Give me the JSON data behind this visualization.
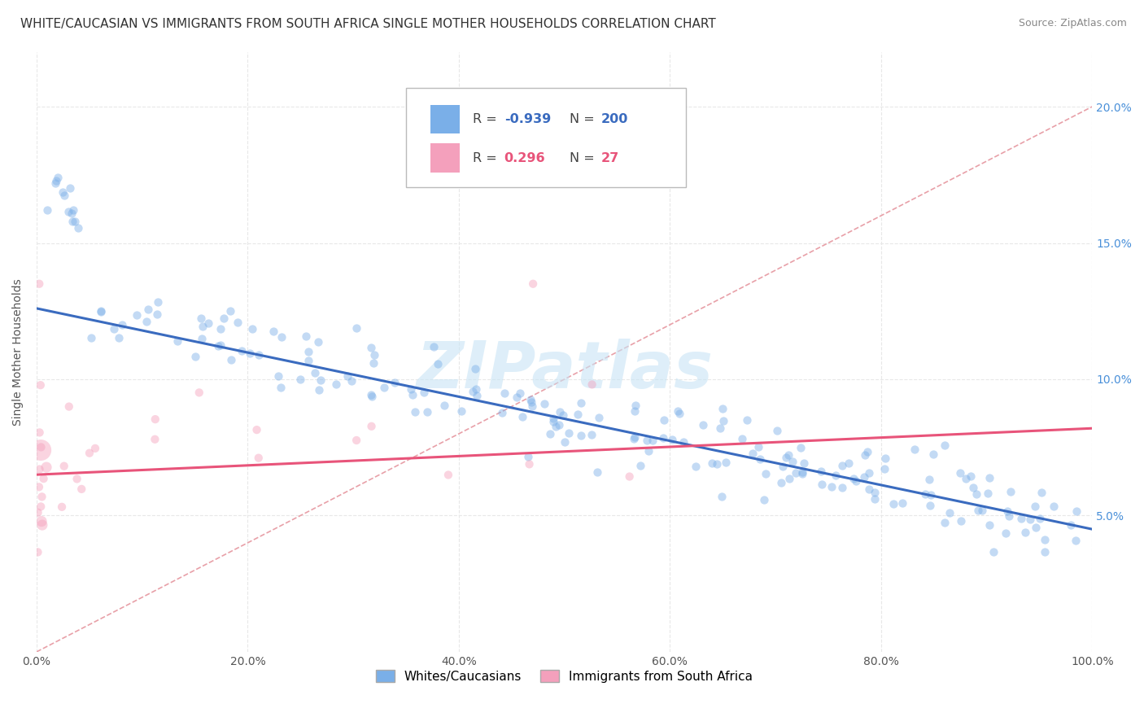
{
  "title": "WHITE/CAUCASIAN VS IMMIGRANTS FROM SOUTH AFRICA SINGLE MOTHER HOUSEHOLDS CORRELATION CHART",
  "source": "Source: ZipAtlas.com",
  "ylabel": "Single Mother Households",
  "background_color": "#ffffff",
  "plot_bg_color": "#ffffff",
  "grid_color": "#e8e8e8",
  "watermark": "ZIPatlas",
  "blue_R": -0.939,
  "blue_N": 200,
  "pink_R": 0.296,
  "pink_N": 27,
  "blue_color": "#7aafe8",
  "pink_color": "#f4a0bc",
  "blue_line_color": "#3a6bbf",
  "pink_line_color": "#e8547a",
  "diag_line_color": "#e8a0a8",
  "xlim": [
    0,
    1.0
  ],
  "ylim": [
    0,
    0.22
  ],
  "xtick_labels": [
    "0.0%",
    "20.0%",
    "40.0%",
    "60.0%",
    "80.0%",
    "100.0%"
  ],
  "xtick_vals": [
    0,
    0.2,
    0.4,
    0.6,
    0.8,
    1.0
  ],
  "ytick_vals": [
    0.05,
    0.1,
    0.15,
    0.2
  ],
  "ytick_right_labels": [
    "5.0%",
    "10.0%",
    "15.0%",
    "20.0%"
  ],
  "legend_label_blue": "Whites/Caucasians",
  "legend_label_pink": "Immigrants from South Africa",
  "title_fontsize": 11,
  "source_fontsize": 9,
  "axis_label_fontsize": 10,
  "tick_fontsize": 10,
  "legend_fontsize": 11
}
